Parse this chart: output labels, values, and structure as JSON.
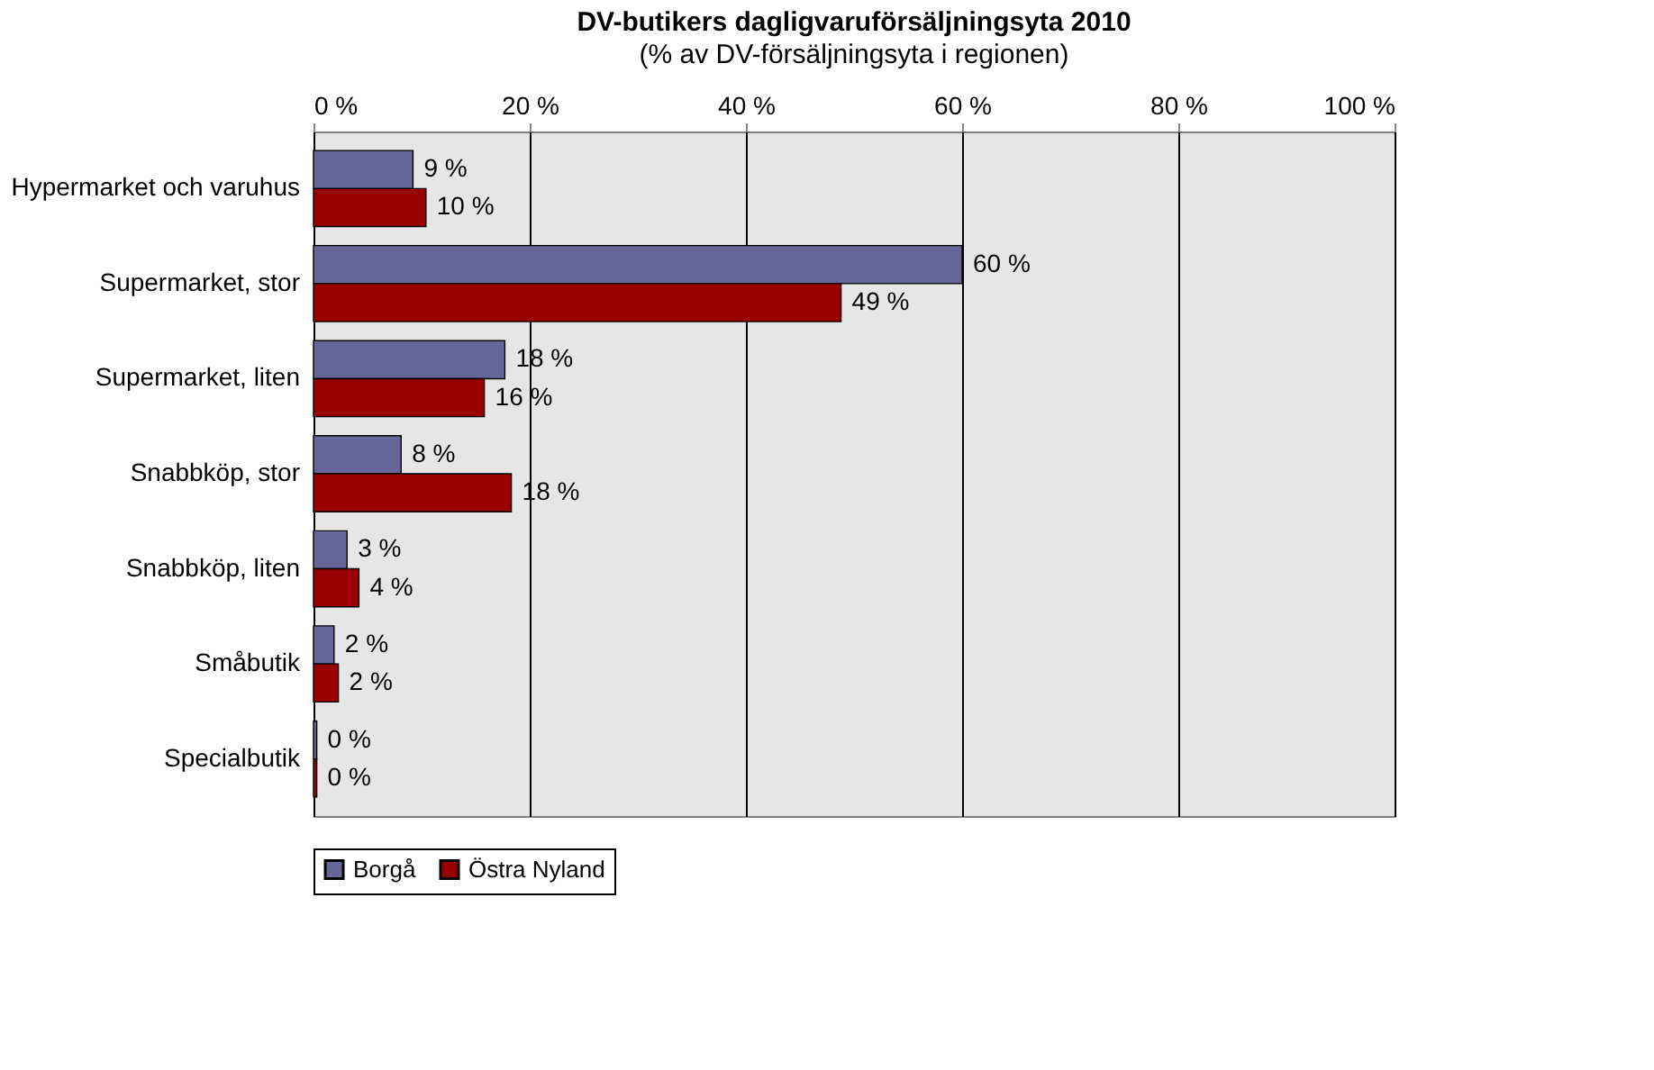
{
  "chart_data": {
    "type": "bar",
    "orientation": "horizontal",
    "title": "DV-butikers dagligvaruförsäljningsyta 2010",
    "subtitle": "(% av DV-försäljningsyta i regionen)",
    "categories": [
      "Hypermarket och varuhus",
      "Supermarket, stor",
      "Supermarket, liten",
      "Snabbköp, stor",
      "Snabbköp, liten",
      "Småbutik",
      "Specialbutik"
    ],
    "series": [
      {
        "name": "Borgå",
        "color": "#666699",
        "values": [
          9.2,
          60,
          17.7,
          8.1,
          3.1,
          1.9,
          0.3
        ],
        "value_labels": [
          "9 %",
          "60 %",
          "18 %",
          "8 %",
          "3 %",
          "2 %",
          "0 %"
        ]
      },
      {
        "name": "Östra Nyland",
        "color": "#990000",
        "values": [
          10.4,
          48.8,
          15.8,
          18.3,
          4.2,
          2.3,
          0.3
        ],
        "value_labels": [
          "10 %",
          "49 %",
          "16 %",
          "18 %",
          "4 %",
          "2 %",
          "0 %"
        ]
      }
    ],
    "xlim": [
      0,
      100
    ],
    "xticks": [
      {
        "value": 0,
        "label": "0 %"
      },
      {
        "value": 20,
        "label": "20 %"
      },
      {
        "value": 40,
        "label": "40 %"
      },
      {
        "value": 60,
        "label": "60 %"
      },
      {
        "value": 80,
        "label": "80 %"
      },
      {
        "value": 100,
        "label": "100 %"
      }
    ],
    "grid": "x",
    "legend": "bottom"
  }
}
